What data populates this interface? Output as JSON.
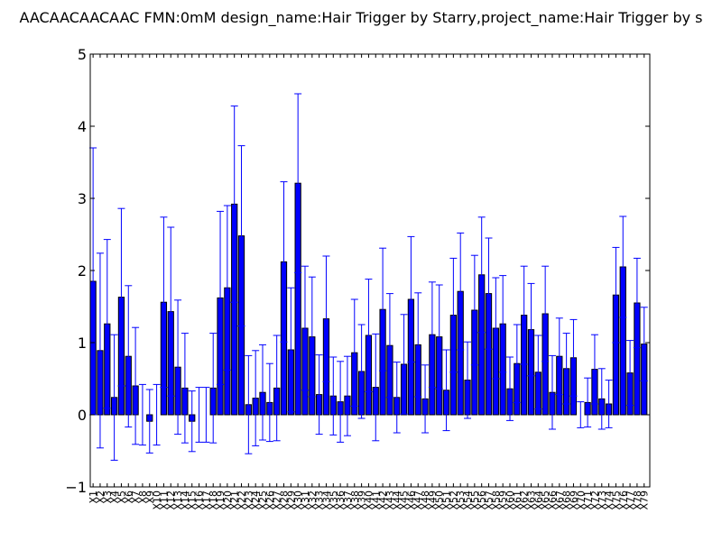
{
  "chart_data": {
    "type": "bar",
    "title": "AACAACAACAAC  FMN:0mM  design_name:Hair Trigger by Starry,project_name:Hair Trigger by s",
    "xlabel": "",
    "ylabel": "",
    "ylim": [
      -1,
      5
    ],
    "yticks": [
      -1,
      0,
      1,
      2,
      3,
      4,
      5
    ],
    "ytick_labels": [
      "−1",
      "0",
      "1",
      "2",
      "3",
      "4",
      "5"
    ],
    "grid": false,
    "colors": {
      "bar_fill": "#0000ff",
      "bar_edge": "#000000",
      "errorbar": "#0000ff",
      "axes": "#000000"
    },
    "categories": [
      "X1",
      "X2",
      "X3",
      "X4",
      "X5",
      "X6",
      "X7",
      "X8",
      "X9",
      "X10",
      "X11",
      "X12",
      "X13",
      "X14",
      "X15",
      "X16",
      "X17",
      "X18",
      "X19",
      "X20",
      "X21",
      "X22",
      "X23",
      "X24",
      "X25",
      "X26",
      "X27",
      "X28",
      "X29",
      "X30",
      "X31",
      "X32",
      "X33",
      "X34",
      "X35",
      "X36",
      "X37",
      "X38",
      "X39",
      "X40",
      "X41",
      "X42",
      "X43",
      "X44",
      "X45",
      "X46",
      "X47",
      "X48",
      "X49",
      "X50",
      "X51",
      "X52",
      "X53",
      "X54",
      "X55",
      "X56",
      "X57",
      "X58",
      "X59",
      "X60",
      "X61",
      "X62",
      "X63",
      "X64",
      "X65",
      "X66",
      "X67",
      "X68",
      "X69",
      "X70",
      "X71",
      "X72",
      "X73",
      "X74",
      "X75",
      "X76",
      "X77",
      "X78",
      "X79"
    ],
    "values": [
      1.85,
      0.89,
      1.26,
      0.24,
      1.63,
      0.81,
      0.4,
      0.0,
      -0.09,
      0.0,
      1.56,
      1.43,
      0.66,
      0.37,
      -0.09,
      0.0,
      0.0,
      0.37,
      1.62,
      1.76,
      2.92,
      2.48,
      0.14,
      0.23,
      0.31,
      0.17,
      0.37,
      2.12,
      0.9,
      3.21,
      1.2,
      1.08,
      0.28,
      1.33,
      0.26,
      0.18,
      0.26,
      0.86,
      0.6,
      1.1,
      0.38,
      1.46,
      0.96,
      0.24,
      0.7,
      1.6,
      0.97,
      0.22,
      1.11,
      1.08,
      0.34,
      1.38,
      1.71,
      0.48,
      1.45,
      1.94,
      1.68,
      1.2,
      1.26,
      0.36,
      0.71,
      1.38,
      1.18,
      0.59,
      1.4,
      0.31,
      0.81,
      0.64,
      0.79,
      0.0,
      0.17,
      0.63,
      0.22,
      0.15,
      1.66,
      2.05,
      0.58,
      1.55,
      0.98
    ],
    "errors": [
      1.85,
      1.35,
      1.17,
      0.87,
      1.23,
      0.98,
      0.81,
      0.42,
      0.44,
      0.42,
      1.18,
      1.17,
      0.93,
      0.76,
      0.42,
      0.38,
      0.38,
      0.76,
      1.2,
      1.14,
      1.36,
      1.25,
      0.68,
      0.66,
      0.66,
      0.54,
      0.73,
      1.11,
      0.86,
      1.24,
      0.86,
      0.83,
      0.55,
      0.87,
      0.54,
      0.56,
      0.55,
      0.74,
      0.65,
      0.78,
      0.74,
      0.85,
      0.72,
      0.49,
      0.69,
      0.87,
      0.72,
      0.47,
      0.73,
      0.72,
      0.56,
      0.79,
      0.81,
      0.53,
      0.76,
      0.8,
      0.77,
      0.7,
      0.67,
      0.44,
      0.54,
      0.68,
      0.64,
      0.51,
      0.66,
      0.51,
      0.53,
      0.49,
      0.53,
      0.18,
      0.34,
      0.48,
      0.42,
      0.33,
      0.66,
      0.7,
      0.45,
      0.62,
      0.51
    ]
  }
}
